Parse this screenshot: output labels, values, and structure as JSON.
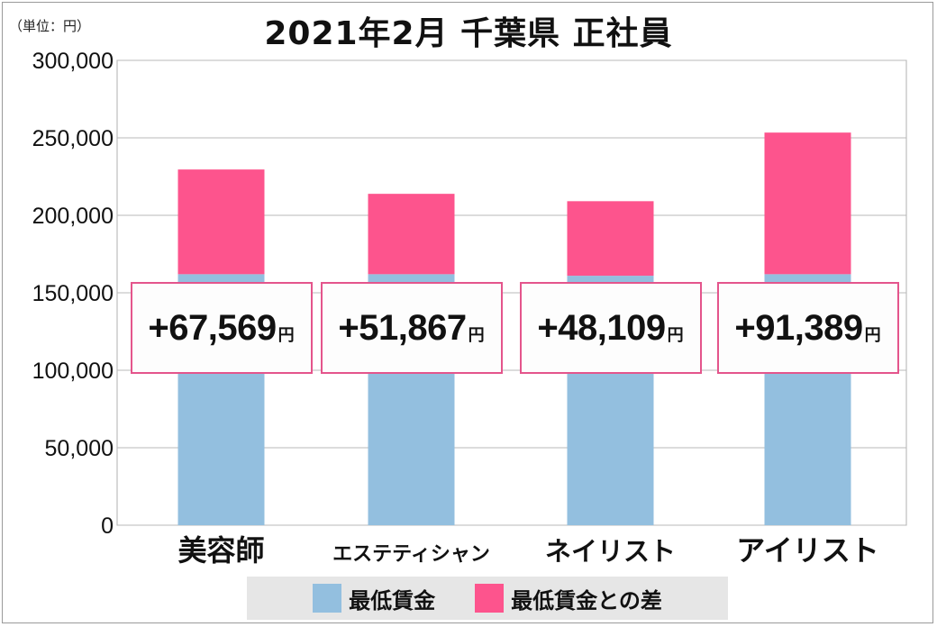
{
  "unit_label": "（単位：円）",
  "chart_data": {
    "type": "bar",
    "stacked": true,
    "title": "2021年2月 千葉県 正社員",
    "categories": [
      "美容師",
      "エステティシャン",
      "ネイリスト",
      "アイリスト"
    ],
    "series": [
      {
        "name": "最低賃金",
        "color": "#93bfdf",
        "values": [
          162000,
          162000,
          161000,
          162000
        ]
      },
      {
        "name": "最低賃金との差",
        "color": "#fd548d",
        "values": [
          67569,
          51867,
          48109,
          91389
        ]
      }
    ],
    "difference_labels": [
      "+67,569",
      "+51,867",
      "+48,109",
      "+91,389"
    ],
    "difference_unit": "円",
    "yticks": [
      "300,000",
      "250,000",
      "200,000",
      "150,000",
      "100,000",
      "50,000",
      "0"
    ],
    "ylim": [
      0,
      300000
    ],
    "grid": true,
    "legend": "bottom"
  }
}
